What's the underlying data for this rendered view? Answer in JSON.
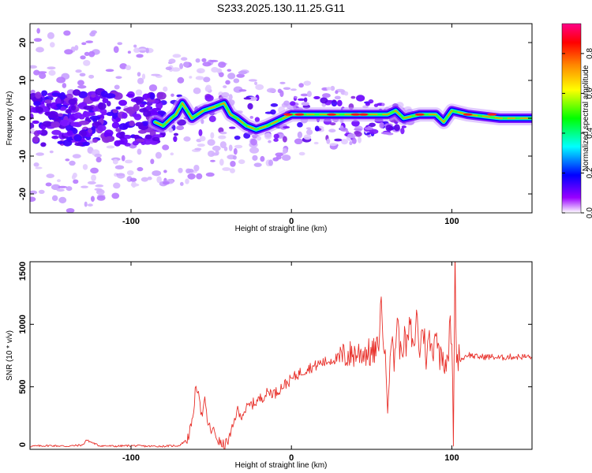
{
  "figure": {
    "title": "S233.2025.130.11.25.G11"
  },
  "chart_data": [
    {
      "type": "heatmap",
      "xlabel": "Height of straight line (km)",
      "ylabel": "Frequency (Hz)",
      "xlim": [
        -163,
        150
      ],
      "ylim": [
        -25,
        25
      ],
      "xticks": [
        -100,
        0,
        100
      ],
      "xtick_labels": [
        "-100",
        "0",
        "100"
      ],
      "yticks": [
        20,
        10,
        0,
        -10,
        -20
      ],
      "ytick_labels": [
        "20",
        "10",
        "0",
        "-10",
        "-20"
      ],
      "grid": false,
      "colorbar": {
        "label": "Normalized spectral amplitude",
        "range": [
          0,
          0.95
        ],
        "ticks": [
          0.0,
          0.2,
          0.4,
          0.6,
          0.8
        ],
        "tick_labels": [
          "0.0",
          "0.2",
          "0.4",
          "0.6",
          "0.8"
        ],
        "colors": [
          "#ffffff",
          "#9900ff",
          "#0000ff",
          "#00ffff",
          "#00ff00",
          "#ffff00",
          "#ff8800",
          "#ff0000",
          "#ff0088"
        ]
      },
      "ridge": {
        "x": [
          -85,
          -80,
          -75,
          -72,
          -68,
          -62,
          -55,
          -48,
          -42,
          -38,
          -34,
          -28,
          -22,
          -15,
          -5,
          0,
          20,
          50,
          60,
          65,
          70,
          80,
          90,
          95,
          100,
          110,
          130,
          150
        ],
        "y": [
          -1,
          -2,
          0,
          1,
          4,
          0,
          2,
          3,
          4,
          1,
          0,
          -2,
          -3,
          -2,
          0,
          1,
          1,
          1,
          1,
          2,
          0,
          1,
          1,
          -1,
          2,
          1,
          0,
          0
        ]
      }
    },
    {
      "type": "line",
      "xlabel": "Height of straight line (km)",
      "ylabel": "SNR (10 * v/v)",
      "xlim": [
        -163,
        150
      ],
      "ylim": [
        0,
        1500
      ],
      "xticks": [
        -100,
        0,
        100
      ],
      "xtick_labels": [
        "-100",
        "0",
        "100"
      ],
      "yticks": [
        0,
        500,
        1000,
        1500
      ],
      "ytick_labels": [
        "0",
        "500",
        "1000",
        "1500"
      ],
      "grid": false,
      "series": [
        {
          "color": "#e8302a",
          "x": [
            -163,
            -150,
            -140,
            -130,
            -128,
            -120,
            -110,
            -100,
            -90,
            -80,
            -70,
            -65,
            -62,
            -60,
            -58,
            -56,
            -54,
            -52,
            -50,
            -48,
            -46,
            -44,
            -42,
            -40,
            -38,
            -36,
            -34,
            -32,
            -30,
            -26,
            -22,
            -18,
            -14,
            -10,
            -6,
            -2,
            0,
            2,
            5,
            8,
            10,
            14,
            18,
            22,
            26,
            30,
            34,
            38,
            42,
            46,
            50,
            54,
            56,
            58,
            60,
            62,
            64,
            66,
            68,
            70,
            72,
            74,
            76,
            78,
            80,
            82,
            84,
            86,
            88,
            90,
            92,
            94,
            96,
            98,
            99,
            100,
            101,
            102,
            103,
            104,
            106,
            108,
            110,
            115,
            120,
            125,
            130,
            135,
            140,
            145,
            150
          ],
          "y": [
            25,
            30,
            25,
            35,
            75,
            30,
            25,
            30,
            25,
            25,
            30,
            80,
            200,
            450,
            500,
            260,
            380,
            200,
            150,
            140,
            80,
            40,
            30,
            60,
            110,
            200,
            320,
            260,
            300,
            350,
            380,
            420,
            460,
            450,
            500,
            540,
            560,
            580,
            610,
            630,
            650,
            660,
            690,
            700,
            720,
            730,
            750,
            760,
            770,
            780,
            760,
            800,
            1170,
            780,
            400,
            900,
            700,
            1050,
            760,
            880,
            820,
            1000,
            760,
            1080,
            780,
            1000,
            740,
            880,
            760,
            1000,
            740,
            780,
            700,
            800,
            1020,
            800,
            120,
            1500,
            700,
            740,
            720,
            740,
            760,
            740,
            740,
            740,
            730,
            740,
            740,
            740,
            740
          ]
        }
      ]
    }
  ]
}
